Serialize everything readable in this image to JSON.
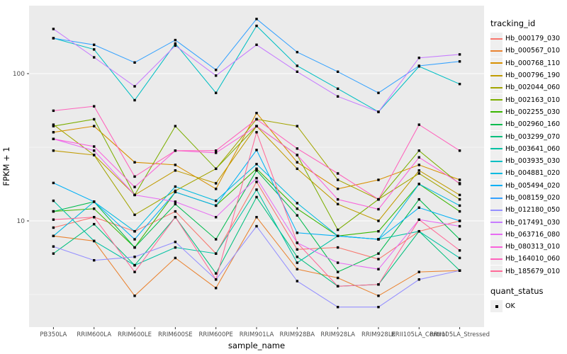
{
  "chart_data": {
    "type": "line",
    "title": "",
    "xlabel": "sample_name",
    "ylabel": "FPKM + 1",
    "y_scale": "log10",
    "y_breaks": [
      10,
      100
    ],
    "y_minor_breaks": [
      3.162,
      31.62
    ],
    "ylim": [
      2.3,
      290
    ],
    "grid": "on",
    "panel_bg": "#ebebeb",
    "grid_color": "#ffffff",
    "axis_text_color": "#4d4d4d",
    "legend_position": "right",
    "point_marker": {
      "shape": "square",
      "color": "#000000",
      "size": 3.4
    },
    "categories": [
      "PB350LA",
      "RRIM600LA",
      "RRIM600LE",
      "RRIM600SE",
      "RRIM600PE",
      "RRIM901LA",
      "RRIM928BA",
      "RRIM928LA",
      "RRIM928LE",
      "RRII105LA_Control",
      "RRII105LA_Stressed"
    ],
    "legend": {
      "tracking_title": "tracking_id",
      "quant_title": "quant_status",
      "quant_items": [
        "OK"
      ]
    },
    "series": [
      {
        "name": "Hb_000179_030",
        "color": "#F8766D",
        "values": [
          9.0,
          10.6,
          8.5,
          11.6,
          6.0,
          18.4,
          6.4,
          6.6,
          5.5,
          8.5,
          10.0
        ]
      },
      {
        "name": "Hb_000567_010",
        "color": "#EA8331",
        "values": [
          7.9,
          7.3,
          3.1,
          5.6,
          3.5,
          10.6,
          4.7,
          4.1,
          3.1,
          4.5,
          4.6
        ]
      },
      {
        "name": "Hb_000768_110",
        "color": "#D89000",
        "values": [
          40.0,
          44.0,
          25.0,
          24.0,
          16.5,
          54.0,
          25.0,
          16.5,
          19.0,
          24.0,
          19.0
        ]
      },
      {
        "name": "Hb_000796_190",
        "color": "#C09B00",
        "values": [
          30.0,
          28.0,
          15.0,
          22.0,
          18.0,
          44.0,
          22.6,
          13.0,
          10.0,
          22.0,
          15.0
        ]
      },
      {
        "name": "Hb_002044_060",
        "color": "#A3A500",
        "values": [
          45.0,
          28.0,
          11.0,
          16.0,
          22.6,
          49.0,
          44.0,
          19.0,
          14.0,
          21.0,
          14.0
        ]
      },
      {
        "name": "Hb_002163_010",
        "color": "#7CAE00",
        "values": [
          44.0,
          49.0,
          15.0,
          44.0,
          22.6,
          44.0,
          28.0,
          8.7,
          14.0,
          30.0,
          17.8
        ]
      },
      {
        "name": "Hb_002255_030",
        "color": "#39B600",
        "values": [
          11.6,
          12.1,
          6.6,
          15.7,
          12.7,
          22.6,
          12.1,
          7.9,
          8.5,
          17.8,
          11.6
        ]
      },
      {
        "name": "Hb_002960_160",
        "color": "#00BB4E",
        "values": [
          11.6,
          13.5,
          6.6,
          13.0,
          7.5,
          22.0,
          10.9,
          4.5,
          6.0,
          14.0,
          7.5
        ]
      },
      {
        "name": "Hb_003299_070",
        "color": "#00BF7D",
        "values": [
          6.0,
          9.5,
          5.0,
          10.6,
          4.4,
          14.5,
          5.7,
          3.6,
          3.7,
          8.5,
          4.6
        ]
      },
      {
        "name": "Hb_003641_060",
        "color": "#00C1A3",
        "values": [
          13.7,
          7.3,
          5.0,
          6.6,
          6.0,
          16.3,
          5.2,
          7.9,
          7.5,
          8.5,
          5.6
        ]
      },
      {
        "name": "Hb_003935_030",
        "color": "#00BFC4",
        "values": [
          174.0,
          146.0,
          66.0,
          160.0,
          74.0,
          211.0,
          113.0,
          79.0,
          55.0,
          112.0,
          85.0
        ]
      },
      {
        "name": "Hb_004881_020",
        "color": "#00BAE0",
        "values": [
          7.9,
          13.5,
          8.5,
          17.1,
          13.7,
          24.3,
          13.2,
          7.9,
          7.5,
          17.8,
          12.7
        ]
      },
      {
        "name": "Hb_005494_020",
        "color": "#00B0F6",
        "values": [
          18.1,
          13.5,
          7.5,
          15.7,
          12.7,
          30.3,
          8.3,
          7.9,
          7.5,
          12.3,
          10.0
        ]
      },
      {
        "name": "Hb_008159_020",
        "color": "#35A2FF",
        "values": [
          174.0,
          157.0,
          119.0,
          169.0,
          106.0,
          235.0,
          140.0,
          103.0,
          74.0,
          113.0,
          121.0
        ]
      },
      {
        "name": "Hb_012180_050",
        "color": "#9590FF",
        "values": [
          6.7,
          5.4,
          5.7,
          7.2,
          4.0,
          9.2,
          3.9,
          2.6,
          2.6,
          4.0,
          4.6
        ]
      },
      {
        "name": "Hb_017491_030",
        "color": "#C77CFF",
        "values": [
          201.0,
          129.0,
          82.0,
          155.0,
          97.0,
          157.0,
          103.0,
          70.0,
          55.0,
          128.0,
          135.0
        ]
      },
      {
        "name": "Hb_063716_080",
        "color": "#E76BF3",
        "values": [
          36.0,
          30.0,
          15.0,
          13.5,
          10.6,
          19.5,
          7.1,
          5.2,
          4.7,
          10.2,
          9.2
        ]
      },
      {
        "name": "Hb_080313_010",
        "color": "#FA62DB",
        "values": [
          36.0,
          32.0,
          17.0,
          30.0,
          29.0,
          44.0,
          28.0,
          14.0,
          12.0,
          27.0,
          18.0
        ]
      },
      {
        "name": "Hb_164010_060",
        "color": "#FF62BC",
        "values": [
          56.0,
          60.0,
          20.0,
          30.0,
          30.0,
          49.0,
          31.0,
          21.0,
          14.0,
          45.0,
          30.0
        ]
      },
      {
        "name": "Hb_185679_010",
        "color": "#FF6A98",
        "values": [
          10.2,
          10.6,
          4.5,
          10.6,
          4.0,
          40.0,
          7.1,
          3.6,
          3.7,
          10.2,
          6.3
        ]
      }
    ]
  }
}
